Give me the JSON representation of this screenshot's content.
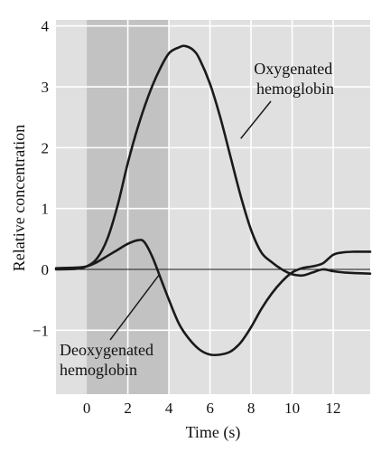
{
  "chart_data": {
    "type": "line",
    "xlabel": "Time (s)",
    "ylabel": "Relative concentration",
    "xlim": [
      -1.5,
      13.8
    ],
    "ylim": [
      -2.05,
      4.1
    ],
    "x_ticks": [
      0,
      2,
      4,
      6,
      8,
      10,
      12
    ],
    "y_ticks": [
      -1,
      0,
      1,
      2,
      3,
      4
    ],
    "x_tick_labels": [
      "0",
      "2",
      "4",
      "6",
      "8",
      "10",
      "12"
    ],
    "y_tick_labels": [
      "−1",
      "0",
      "1",
      "2",
      "3",
      "4"
    ],
    "grid": true,
    "zero_line": true,
    "shaded_interval": [
      0,
      4
    ],
    "colors": {
      "panel": "#e0e0e0",
      "shade": "#c2c2c2",
      "grid": "#ffffff",
      "line": "#1a1a1a"
    },
    "series": [
      {
        "name": "Oxygenated hemoglobin",
        "x": [
          -1.5,
          -0.5,
          0,
          0.5,
          1,
          1.5,
          2,
          2.5,
          3,
          3.5,
          4,
          4.5,
          4.8,
          5.2,
          5.5,
          6,
          6.5,
          7,
          7.5,
          8,
          8.5,
          9,
          9.5,
          10,
          10.5,
          11,
          11.5,
          12,
          12.5,
          13,
          13.8
        ],
        "y": [
          0.0,
          0.01,
          0.05,
          0.18,
          0.5,
          1.05,
          1.75,
          2.35,
          2.85,
          3.25,
          3.55,
          3.65,
          3.67,
          3.6,
          3.45,
          3.05,
          2.5,
          1.85,
          1.2,
          0.65,
          0.28,
          0.12,
          0.0,
          -0.08,
          -0.1,
          -0.05,
          0.0,
          -0.03,
          -0.05,
          -0.06,
          -0.07
        ]
      },
      {
        "name": "Deoxygenated hemoglobin",
        "x": [
          -1.5,
          -0.5,
          0,
          0.5,
          1,
          1.5,
          2,
          2.5,
          2.8,
          3.2,
          3.6,
          4,
          4.5,
          5,
          5.5,
          6,
          6.5,
          7,
          7.5,
          8,
          8.5,
          9,
          9.5,
          10,
          10.5,
          11,
          11.5,
          12,
          12.5,
          13,
          13.8
        ],
        "y": [
          0.02,
          0.03,
          0.05,
          0.12,
          0.22,
          0.32,
          0.42,
          0.48,
          0.45,
          0.2,
          -0.15,
          -0.5,
          -0.9,
          -1.15,
          -1.32,
          -1.4,
          -1.4,
          -1.35,
          -1.2,
          -0.95,
          -0.65,
          -0.4,
          -0.2,
          -0.05,
          0.02,
          0.05,
          0.1,
          0.24,
          0.28,
          0.29,
          0.29
        ]
      }
    ],
    "annotations": [
      {
        "lines": [
          "Oxygenated",
          "hemoglobin"
        ],
        "series": "Oxygenated hemoglobin"
      },
      {
        "lines": [
          "Deoxygenated",
          "hemoglobin"
        ],
        "series": "Deoxygenated hemoglobin"
      }
    ]
  }
}
